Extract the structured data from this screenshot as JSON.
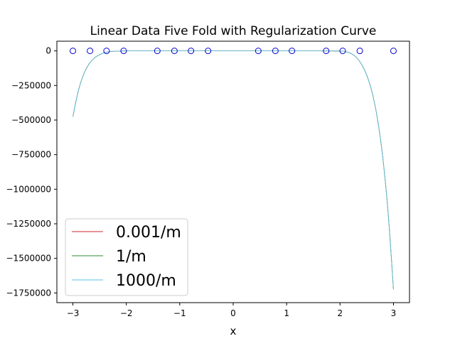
{
  "chart_data": {
    "type": "line",
    "title": "Linear Data Five Fold with Regularization Curve",
    "xlabel": "x",
    "ylabel": "",
    "xlim": [
      -3.3,
      3.3
    ],
    "ylim": [
      -1820000,
      70000
    ],
    "x_ticks": [
      -3,
      -2,
      -1,
      0,
      1,
      2,
      3
    ],
    "x_tick_labels": [
      "−3",
      "−2",
      "−1",
      "0",
      "1",
      "2",
      "3"
    ],
    "y_ticks": [
      0,
      -250000,
      -500000,
      -750000,
      -1000000,
      -1250000,
      -1500000,
      -1750000
    ],
    "y_tick_labels": [
      "0",
      "−250000",
      "−500000",
      "−750000",
      "−1000000",
      "−1250000",
      "−1500000",
      "−1750000"
    ],
    "grid": false,
    "legend_position": "lower-left",
    "series": [
      {
        "name": "0.001/m",
        "color": "#d62728",
        "kind": "curve",
        "x": [
          -3.0,
          -2.9,
          -2.8,
          -2.7,
          -2.6,
          -2.5,
          -2.4,
          -2.3,
          -2.2,
          -2.1,
          -2.0,
          -1.5,
          -1.0,
          0.0,
          1.0,
          1.5,
          2.0,
          2.1,
          2.2,
          2.3,
          2.4,
          2.5,
          2.6,
          2.7,
          2.8,
          2.9,
          3.0
        ],
        "y": [
          -475000,
          -290000,
          -170000,
          -95000,
          -52000,
          -27000,
          -12000,
          -5000,
          -2000,
          -500,
          0,
          0,
          0,
          0,
          0,
          0,
          -1000,
          -5000,
          -18000,
          -45000,
          -95000,
          -175000,
          -300000,
          -490000,
          -770000,
          -1170000,
          -1725000
        ]
      },
      {
        "name": "1/m",
        "color": "#2e8b2e",
        "kind": "curve",
        "x": [
          -3.0,
          -2.9,
          -2.8,
          -2.7,
          -2.6,
          -2.5,
          -2.4,
          -2.3,
          -2.2,
          -2.1,
          -2.0,
          -1.5,
          -1.0,
          0.0,
          1.0,
          1.5,
          2.0,
          2.1,
          2.2,
          2.3,
          2.4,
          2.5,
          2.6,
          2.7,
          2.8,
          2.9,
          3.0
        ],
        "y": [
          -475000,
          -290000,
          -170000,
          -95000,
          -52000,
          -27000,
          -12000,
          -5000,
          -2000,
          -500,
          0,
          0,
          0,
          0,
          0,
          0,
          -1000,
          -5000,
          -18000,
          -45000,
          -95000,
          -175000,
          -300000,
          -490000,
          -770000,
          -1170000,
          -1725000
        ]
      },
      {
        "name": "1000/m",
        "color": "#5bc0eb",
        "kind": "curve",
        "x": [
          -3.0,
          -2.9,
          -2.8,
          -2.7,
          -2.6,
          -2.5,
          -2.4,
          -2.3,
          -2.2,
          -2.1,
          -2.0,
          -1.5,
          -1.0,
          0.0,
          1.0,
          1.5,
          2.0,
          2.1,
          2.2,
          2.3,
          2.4,
          2.5,
          2.6,
          2.7,
          2.8,
          2.9,
          3.0
        ],
        "y": [
          -475000,
          -290000,
          -170000,
          -95000,
          -52000,
          -27000,
          -12000,
          -5000,
          -2000,
          -500,
          0,
          0,
          0,
          0,
          0,
          0,
          -1000,
          -5000,
          -18000,
          -45000,
          -95000,
          -175000,
          -300000,
          -490000,
          -770000,
          -1170000,
          -1725000
        ]
      }
    ],
    "points": {
      "color": "#0000cc",
      "x": [
        -3.0,
        -2.68,
        -2.37,
        -2.05,
        -1.42,
        -1.1,
        -0.79,
        -0.47,
        0.47,
        0.79,
        1.1,
        1.74,
        2.05,
        2.37,
        3.0
      ],
      "y": [
        0,
        0,
        0,
        0,
        0,
        0,
        0,
        0,
        0,
        0,
        0,
        0,
        0,
        0,
        0
      ]
    }
  }
}
